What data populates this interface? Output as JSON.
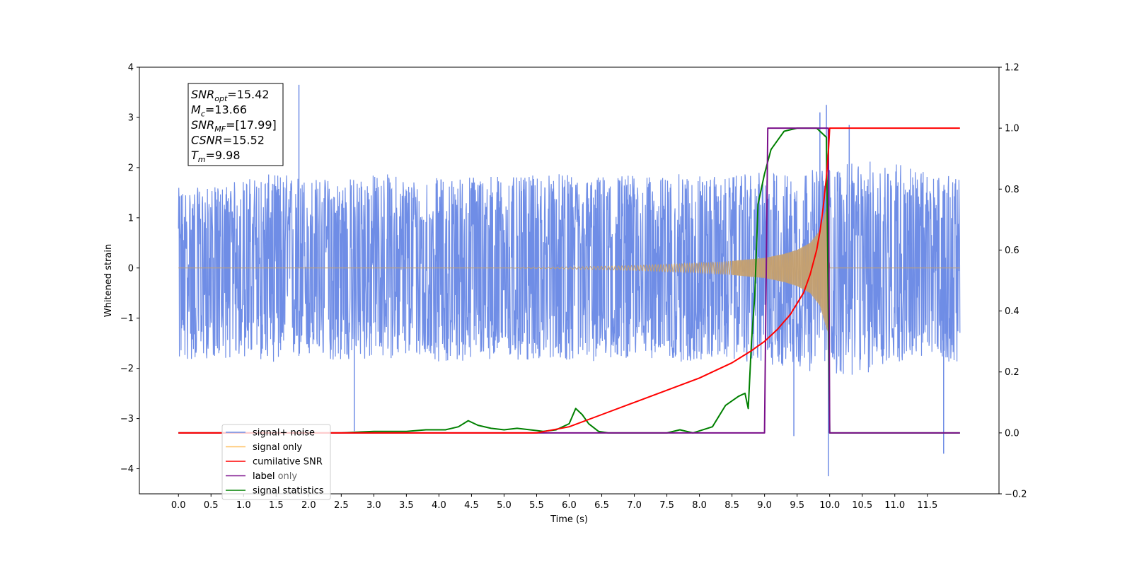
{
  "chart_data": {
    "type": "line",
    "xlabel": "Time (s)",
    "ylabel": "Whitened strain",
    "xlim": [
      -0.6,
      12.6
    ],
    "ylim_left": [
      -4.5,
      4.0
    ],
    "ylim_right": [
      -0.2,
      1.2
    ],
    "x_ticks": [
      0.0,
      0.5,
      1.0,
      1.5,
      2.0,
      2.5,
      3.0,
      3.5,
      4.0,
      4.5,
      5.0,
      5.5,
      6.0,
      6.5,
      7.0,
      7.5,
      8.0,
      8.5,
      9.0,
      9.5,
      10.0,
      10.5,
      11.0,
      11.5
    ],
    "x_tick_labels": [
      "0.0",
      "0.5",
      "1.0",
      "1.5",
      "2.0",
      "2.5",
      "3.0",
      "3.5",
      "4.0",
      "4.5",
      "5.0",
      "5.5",
      "6.0",
      "6.5",
      "7.0",
      "7.5",
      "8.0",
      "8.5",
      "9.0",
      "9.5",
      "10.0",
      "10.5",
      "11.0",
      "11.5"
    ],
    "y_ticks_left": [
      4,
      3,
      2,
      1,
      0,
      -1,
      -2,
      -3,
      -4
    ],
    "y_tick_labels_left": [
      "4",
      "3",
      "2",
      "1",
      "0",
      "−1",
      "−2",
      "−3",
      "−4"
    ],
    "y_ticks_right": [
      1.2,
      1.0,
      0.8,
      0.6,
      0.4,
      0.2,
      0.0,
      -0.2
    ],
    "y_tick_labels_right": [
      "1.2",
      "1.0",
      "0.8",
      "0.6",
      "0.4",
      "0.2",
      "0.0",
      "−0.2"
    ],
    "grid": false,
    "legend_position": "lower-left",
    "annotations": [
      {
        "base": "SNR",
        "sub": "opt",
        "rest": "=15.42"
      },
      {
        "base": "M",
        "sub": "c",
        "rest": "=13.66"
      },
      {
        "base": "SNR",
        "sub": "MF",
        "rest": "=[17.99]"
      },
      {
        "base": "CSNR",
        "sub": "",
        "rest": "=15.52"
      },
      {
        "base": "T",
        "sub": "m",
        "rest": "=9.98"
      }
    ],
    "series": [
      {
        "name": "signal+ noise",
        "axis": "left",
        "color": "#6f8de6",
        "x_range": [
          0.0,
          12.0
        ],
        "envelope_upper": [
          1.6,
          1.6,
          1.8,
          1.9,
          1.8,
          1.8,
          1.9,
          1.8,
          1.8,
          1.9,
          1.8,
          1.9,
          1.8,
          1.9,
          1.8,
          1.9,
          1.8,
          1.9,
          1.9,
          2.0,
          2.1,
          2.2,
          1.9,
          1.8
        ],
        "envelope_lower": [
          -1.9,
          -1.8,
          -1.8,
          -1.9,
          -1.8,
          -1.9,
          -1.8,
          -1.8,
          -1.9,
          -1.8,
          -1.9,
          -1.8,
          -1.9,
          -1.8,
          -1.8,
          -1.9,
          -1.8,
          -1.9,
          -2.0,
          -2.1,
          -2.2,
          -1.9,
          -1.8,
          -1.9
        ],
        "peaks": [
          {
            "x": 1.85,
            "y": 3.65
          },
          {
            "x": 9.95,
            "y": 3.25
          },
          {
            "x": 9.85,
            "y": 3.1
          },
          {
            "x": 10.3,
            "y": 2.85
          },
          {
            "x": 11.75,
            "y": -3.7
          },
          {
            "x": 9.98,
            "y": -4.15
          },
          {
            "x": 9.45,
            "y": -3.35
          },
          {
            "x": 2.7,
            "y": -3.25
          }
        ]
      },
      {
        "name": "signal only",
        "axis": "left",
        "color": "#c4a070",
        "x": [
          0.0,
          5.0,
          6.0,
          7.0,
          8.0,
          8.5,
          9.0,
          9.3,
          9.5,
          9.7,
          9.85,
          9.95,
          9.98,
          10.0,
          12.0
        ],
        "amplitude": [
          0.0,
          0.0,
          0.02,
          0.05,
          0.1,
          0.14,
          0.2,
          0.28,
          0.36,
          0.5,
          0.75,
          1.2,
          1.3,
          0.0,
          0.0
        ]
      },
      {
        "name": "cumilative SNR",
        "axis": "right",
        "color": "#ff0000",
        "x": [
          0.0,
          5.5,
          6.0,
          6.5,
          7.0,
          7.5,
          8.0,
          8.5,
          8.8,
          9.0,
          9.2,
          9.4,
          9.6,
          9.7,
          9.8,
          9.85,
          9.9,
          9.95,
          9.98,
          10.0,
          12.0
        ],
        "y": [
          0.0,
          0.0,
          0.02,
          0.06,
          0.1,
          0.14,
          0.18,
          0.23,
          0.27,
          0.3,
          0.34,
          0.39,
          0.46,
          0.52,
          0.6,
          0.66,
          0.74,
          0.84,
          0.92,
          1.0,
          1.0
        ]
      },
      {
        "name": "label",
        "axis": "right",
        "color": "#7a0f8a",
        "x": [
          0.0,
          9.0,
          9.05,
          9.98,
          10.0,
          12.0
        ],
        "y": [
          0.0,
          0.0,
          1.0,
          1.0,
          0.0,
          0.0
        ]
      },
      {
        "name": "signal statistics",
        "axis": "right",
        "color": "#008000",
        "x": [
          0.0,
          2.5,
          3.0,
          3.5,
          3.8,
          4.1,
          4.3,
          4.45,
          4.6,
          4.8,
          5.0,
          5.2,
          5.4,
          5.6,
          5.8,
          6.0,
          6.1,
          6.2,
          6.3,
          6.45,
          6.6,
          7.5,
          7.7,
          7.9,
          8.2,
          8.4,
          8.6,
          8.7,
          8.75,
          8.8,
          8.85,
          8.9,
          9.0,
          9.1,
          9.2,
          9.3,
          9.5,
          9.8,
          9.95,
          10.0,
          12.0
        ],
        "y": [
          0.0,
          0.0,
          0.005,
          0.005,
          0.01,
          0.01,
          0.02,
          0.04,
          0.025,
          0.015,
          0.01,
          0.015,
          0.01,
          0.005,
          0.01,
          0.03,
          0.08,
          0.06,
          0.03,
          0.005,
          0.0,
          0.0,
          0.01,
          0.0,
          0.02,
          0.09,
          0.12,
          0.13,
          0.08,
          0.3,
          0.45,
          0.75,
          0.85,
          0.93,
          0.96,
          0.99,
          1.0,
          1.0,
          0.97,
          0.0,
          0.0
        ]
      }
    ],
    "legend_extra_text": [
      "label only"
    ]
  }
}
